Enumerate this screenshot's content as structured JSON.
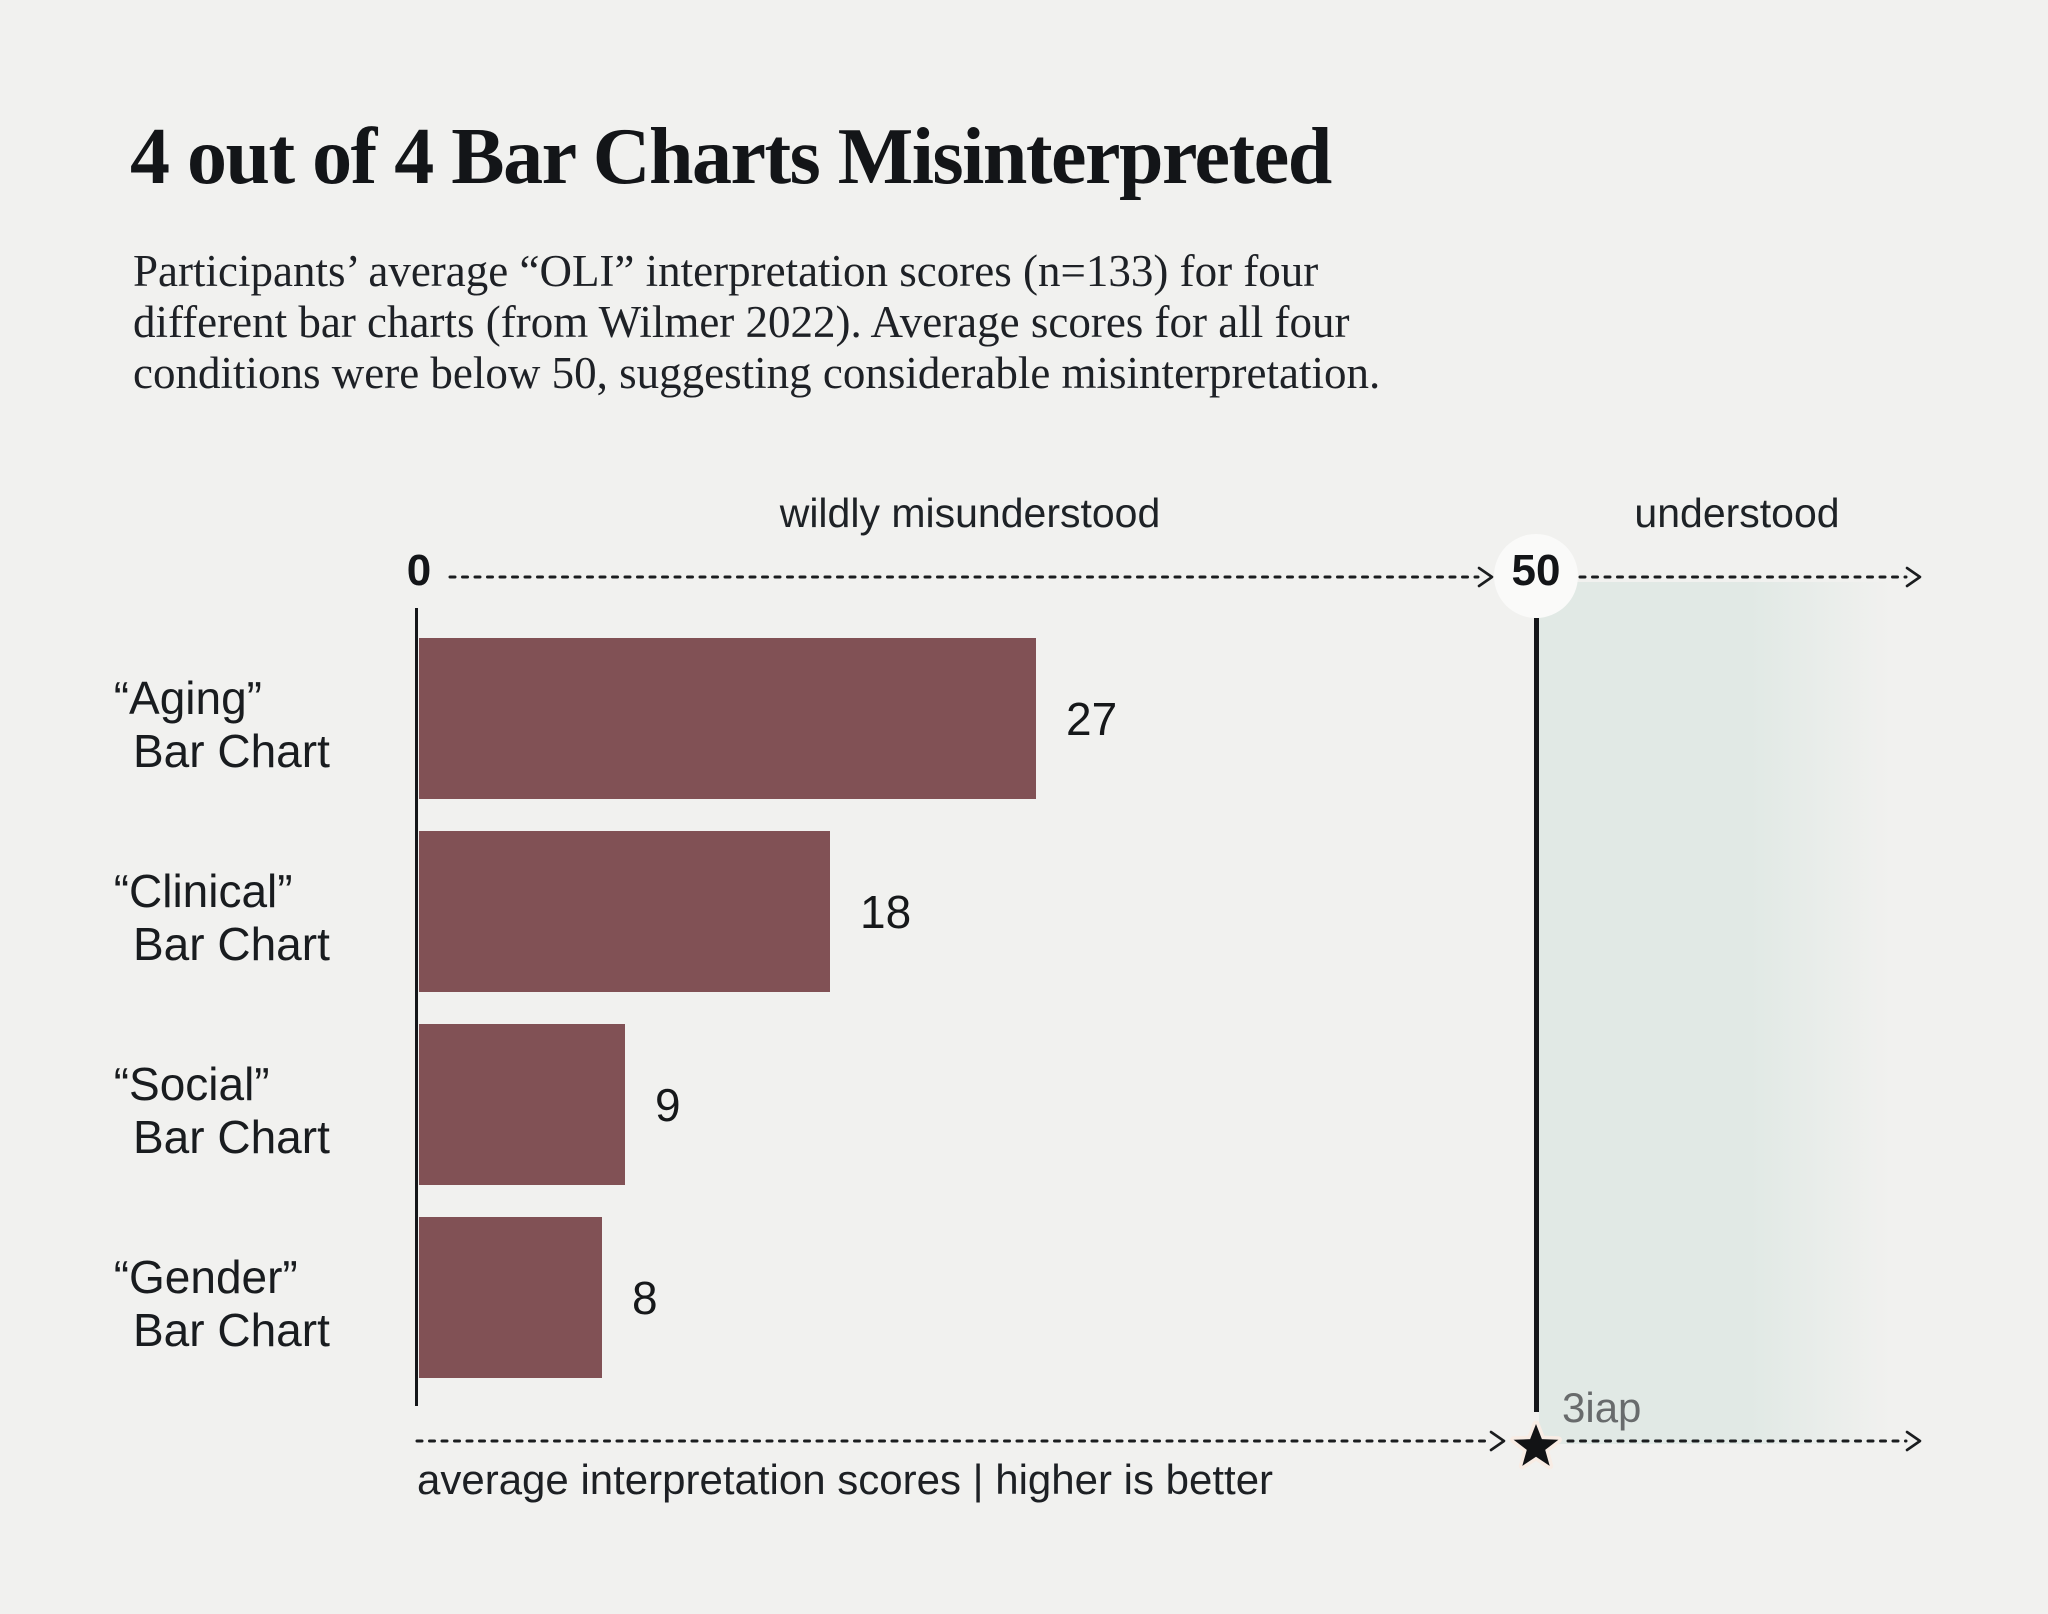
{
  "page": {
    "background_color": "#f1f1ef"
  },
  "header": {
    "title": "4 out of 4 Bar Charts Misinterpreted",
    "subtitle_lines": [
      "Participants’ average “OLI” interpretation scores (n=133) for four",
      "different bar charts (from Wilmer 2022). Average scores for all four",
      "conditions were below 50, suggesting considerable misinterpretation."
    ]
  },
  "chart_data": {
    "type": "bar",
    "orientation": "horizontal",
    "title": "4 out of 4 Bar Charts Misinterpreted",
    "categories": [
      "“Aging” Bar Chart",
      "“Clinical” Bar Chart",
      "“Social” Bar Chart",
      "“Gender” Bar Chart"
    ],
    "values": [
      27,
      18,
      9,
      8
    ],
    "rows": [
      {
        "label_line1": "“Aging”",
        "label_line2": "Bar Chart",
        "value": 27
      },
      {
        "label_line1": "“Clinical”",
        "label_line2": "Bar Chart",
        "value": 18
      },
      {
        "label_line1": "“Social”",
        "label_line2": "Bar Chart",
        "value": 9
      },
      {
        "label_line1": "“Gender”",
        "label_line2": "Bar Chart",
        "value": 8
      }
    ],
    "x_axis": {
      "min": 0,
      "tick_labels": [
        "0",
        "50"
      ],
      "reference_value": 50,
      "caption": "average interpretation scores | higher is better"
    },
    "zone_labels": {
      "left": "wildly misunderstood",
      "right": "understood"
    },
    "source": "3iap",
    "colors": {
      "bar": "#815155",
      "understood_region": "#e1e9e5",
      "axis_ink": "#141619",
      "muted_text": "#686b6c",
      "star_halo": "#f8ece4"
    }
  }
}
